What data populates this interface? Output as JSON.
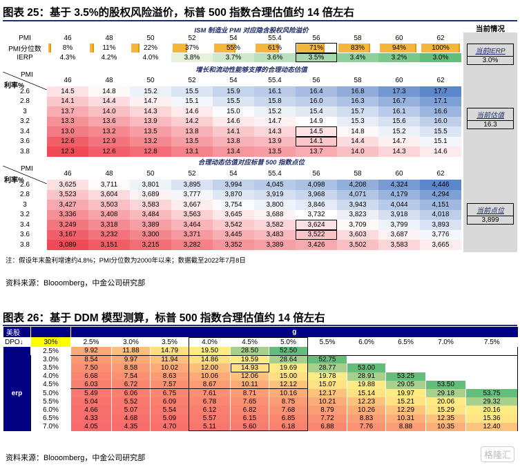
{
  "fig25": {
    "title": "图表 25：基于 3.5%的股权风险溢价，标普 500 指数合理估值约 14 倍左右",
    "current_header": "当前情况",
    "ism_header": "ISM 制造业 PMI 对应隐含股权风险溢价",
    "pmi_label": "PMI",
    "pmi_pct_label": "PMI分位数",
    "ierp_label": "IERP",
    "pmi": [
      "46",
      "48",
      "50",
      "52",
      "54",
      "55.4",
      "56",
      "58",
      "60",
      "62"
    ],
    "pmi_pct": [
      "8%",
      "11%",
      "22%",
      "37%",
      "55%",
      "61%",
      "71%",
      "83%",
      "94%",
      "100%"
    ],
    "pmi_pct_values": [
      8,
      11,
      22,
      37,
      55,
      61,
      71,
      83,
      94,
      100
    ],
    "ierp": [
      "4.3%",
      "4.2%",
      "4.0%",
      "3.8%",
      "3.7%",
      "3.6%",
      "3.5%",
      "3.4%",
      "3.2%",
      "3.0%"
    ],
    "current_ierp": {
      "label": "当前IERP",
      "value": "3.0%"
    },
    "pe_header": "增长和流动性能够支撑的合理动态估值",
    "rate_label": "利率%",
    "rates": [
      "2.6",
      "2.8",
      "3",
      "3.2",
      "3.4",
      "3.6",
      "3.8"
    ],
    "pe": [
      [
        "14.5",
        "14.8",
        "15.2",
        "15.5",
        "15.9",
        "16.1",
        "16.4",
        "16.8",
        "17.3",
        "17.7"
      ],
      [
        "14.1",
        "14.4",
        "14.7",
        "15.1",
        "15.5",
        "15.8",
        "16.0",
        "16.3",
        "16.7",
        "17.1"
      ],
      [
        "13.7",
        "14.0",
        "14.3",
        "14.6",
        "15.0",
        "15.2",
        "15.4",
        "15.7",
        "16.1",
        "16.6"
      ],
      [
        "13.3",
        "13.6",
        "13.9",
        "14.2",
        "14.6",
        "14.7",
        "14.9",
        "15.3",
        "15.6",
        "16.0"
      ],
      [
        "13.0",
        "13.2",
        "13.5",
        "13.8",
        "14.1",
        "14.3",
        "14.5",
        "14.8",
        "15.2",
        "15.5"
      ],
      [
        "12.6",
        "12.9",
        "13.2",
        "13.5",
        "13.8",
        "13.9",
        "14.1",
        "14.4",
        "14.7",
        "15.1"
      ],
      [
        "12.3",
        "12.6",
        "12.8",
        "13.1",
        "13.4",
        "13.5",
        "13.7",
        "14.0",
        "14.3",
        "14.6"
      ]
    ],
    "current_pe": {
      "label": "当前估值",
      "value": "16.3"
    },
    "idx_header": "合理动态估值对应标普 500 指数点位",
    "idx": [
      [
        "3,625",
        "3,711",
        "3,801",
        "3,895",
        "3,994",
        "4,045",
        "4,098",
        "4,208",
        "4,324",
        "4,446"
      ],
      [
        "3,523",
        "3,604",
        "3,689",
        "3,777",
        "3,870",
        "3,919",
        "3,968",
        "4,071",
        "4,179",
        "4,294"
      ],
      [
        "3,427",
        "3,503",
        "3,583",
        "3,667",
        "3,754",
        "3,800",
        "3,846",
        "3,943",
        "4,044",
        "4,151"
      ],
      [
        "3,336",
        "3,408",
        "3,484",
        "3,563",
        "3,645",
        "3,688",
        "3,732",
        "3,823",
        "3,918",
        "4,018"
      ],
      [
        "3,249",
        "3,318",
        "3,389",
        "3,464",
        "3,542",
        "3,582",
        "3,624",
        "3,709",
        "3,799",
        "3,893"
      ],
      [
        "3,167",
        "3,232",
        "3,300",
        "3,371",
        "3,445",
        "3,483",
        "3,522",
        "3,603",
        "3,687",
        "3,776"
      ],
      [
        "3,089",
        "3,151",
        "3,215",
        "3,282",
        "3,352",
        "3,389",
        "3,426",
        "3,502",
        "3,583",
        "3,665"
      ]
    ],
    "current_idx": {
      "label": "当前点位",
      "value": "3,899"
    },
    "note": "注：假设年末盈利增速约4.8%；PMI分位数为2000年以来；数据截至2022年7月8日",
    "source": "资料来源：Blooomberg，中金公司研究部"
  },
  "fig26": {
    "title": "图表 26：基于 DDM 模型测算，标普 500 指数合理估值约 14 倍左右",
    "us_label": "美股",
    "dpo_label": "DPO↓",
    "dpo_value": "30%",
    "g_label": "g",
    "erp_label": "erp",
    "g": [
      "2.5%",
      "3.0%",
      "3.5%",
      "4.0%",
      "4.5%",
      "5.0%",
      "5.5%",
      "6.0%",
      "6.5%",
      "7.0%",
      "7.5%"
    ],
    "erp": [
      "2.5%",
      "3.0%",
      "3.5%",
      "4.0%",
      "4.5%",
      "5.0%",
      "5.5%",
      "6.0%",
      "6.5%",
      "7.0%"
    ],
    "cells": [
      [
        "9.92",
        "11.88",
        "14.79",
        "19.50",
        "28.50",
        "52.50",
        "",
        "",
        "",
        "",
        ""
      ],
      [
        "8.54",
        "9.97",
        "11.94",
        "14.86",
        "19.59",
        "28.64",
        "52.75",
        "",
        "",
        "",
        ""
      ],
      [
        "7.50",
        "8.58",
        "10.02",
        "12.00",
        "14.93",
        "19.69",
        "28.77",
        "53.00",
        "",
        "",
        ""
      ],
      [
        "6.68",
        "7.54",
        "8.63",
        "10.06",
        "12.06",
        "15.00",
        "19.78",
        "28.91",
        "53.25",
        "",
        ""
      ],
      [
        "6.03",
        "6.72",
        "7.57",
        "8.67",
        "10.11",
        "12.12",
        "15.07",
        "19.88",
        "29.05",
        "53.50",
        ""
      ],
      [
        "5.49",
        "6.06",
        "6.75",
        "7.61",
        "8.71",
        "10.16",
        "12.17",
        "15.14",
        "19.97",
        "29.18",
        "53.75"
      ],
      [
        "5.04",
        "5.52",
        "6.09",
        "6.78",
        "7.65",
        "8.75",
        "10.21",
        "12.23",
        "15.21",
        "20.06",
        "29.32"
      ],
      [
        "4.66",
        "5.07",
        "5.54",
        "6.12",
        "6.82",
        "7.68",
        "8.79",
        "10.26",
        "12.29",
        "15.29",
        "20.16"
      ],
      [
        "4.33",
        "4.68",
        "5.09",
        "5.57",
        "6.15",
        "6.85",
        "7.72",
        "8.83",
        "10.31",
        "12.35",
        "15.36"
      ],
      [
        "4.05",
        "4.35",
        "4.70",
        "5.11",
        "5.60",
        "6.18",
        "6.88",
        "7.76",
        "8.88",
        "10.35",
        "12.40"
      ]
    ],
    "source": "资料来源：Blooomberg，中金公司研究部"
  },
  "watermark": "格隆汇"
}
